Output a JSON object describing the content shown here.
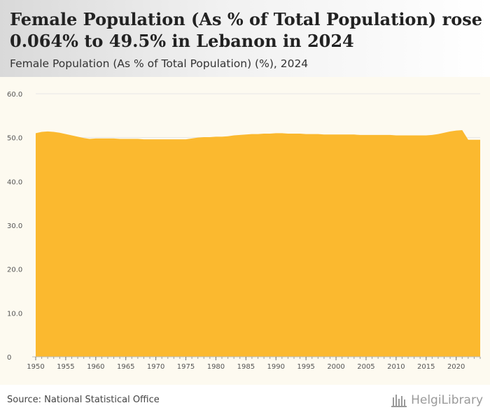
{
  "header": {
    "title": "Female Population (As % of Total Population) rose 0.064% to 49.5% in Lebanon in 2024",
    "subtitle": "Female Population (As % of Total Population) (%), 2024"
  },
  "footer": {
    "source": "Source: National Statistical Office",
    "brand": "HelgiLibrary"
  },
  "colors": {
    "area_fill": "#fbb92f",
    "plot_background": "#fdfaf0",
    "grid": "#e6e6e6",
    "axis_text": "#555555"
  },
  "chart_data": {
    "type": "area",
    "title": "Female Population (As % of Total Population) (%), 2024",
    "xlabel": "",
    "ylabel": "",
    "xlim": [
      1950,
      2024
    ],
    "ylim": [
      0,
      60
    ],
    "grid": true,
    "legend": "none",
    "x_ticks": [
      1950,
      1955,
      1960,
      1965,
      1970,
      1975,
      1980,
      1985,
      1990,
      1995,
      2000,
      2005,
      2010,
      2015,
      2020
    ],
    "y_ticks": [
      "0",
      "10.0",
      "20.0",
      "30.0",
      "40.0",
      "50.0",
      "60.0"
    ],
    "y_tick_values": [
      0,
      10,
      20,
      30,
      40,
      50,
      60
    ],
    "series": [
      {
        "x": [
          1950,
          1951,
          1952,
          1953,
          1954,
          1955,
          1956,
          1957,
          1958,
          1959,
          1960,
          1961,
          1962,
          1963,
          1964,
          1965,
          1966,
          1967,
          1968,
          1969,
          1970,
          1971,
          1972,
          1973,
          1974,
          1975,
          1976,
          1977,
          1978,
          1979,
          1980,
          1981,
          1982,
          1983,
          1984,
          1985,
          1986,
          1987,
          1988,
          1989,
          1990,
          1991,
          1992,
          1993,
          1994,
          1995,
          1996,
          1997,
          1998,
          1999,
          2000,
          2001,
          2002,
          2003,
          2004,
          2005,
          2006,
          2007,
          2008,
          2009,
          2010,
          2011,
          2012,
          2013,
          2014,
          2015,
          2016,
          2017,
          2018,
          2019,
          2020,
          2021,
          2022,
          2023,
          2024
        ],
        "values": [
          51.0,
          51.3,
          51.4,
          51.3,
          51.1,
          50.8,
          50.5,
          50.2,
          49.9,
          49.7,
          49.8,
          49.8,
          49.8,
          49.8,
          49.7,
          49.7,
          49.7,
          49.7,
          49.6,
          49.6,
          49.6,
          49.6,
          49.6,
          49.6,
          49.6,
          49.6,
          49.8,
          50.0,
          50.1,
          50.1,
          50.2,
          50.2,
          50.3,
          50.5,
          50.6,
          50.7,
          50.8,
          50.8,
          50.9,
          50.9,
          51.0,
          51.0,
          50.9,
          50.9,
          50.9,
          50.8,
          50.8,
          50.8,
          50.7,
          50.7,
          50.7,
          50.7,
          50.7,
          50.7,
          50.6,
          50.6,
          50.6,
          50.6,
          50.6,
          50.6,
          50.5,
          50.5,
          50.5,
          50.5,
          50.5,
          50.5,
          50.6,
          50.8,
          51.1,
          51.4,
          51.6,
          51.7,
          49.5,
          49.5,
          49.5
        ]
      }
    ]
  }
}
